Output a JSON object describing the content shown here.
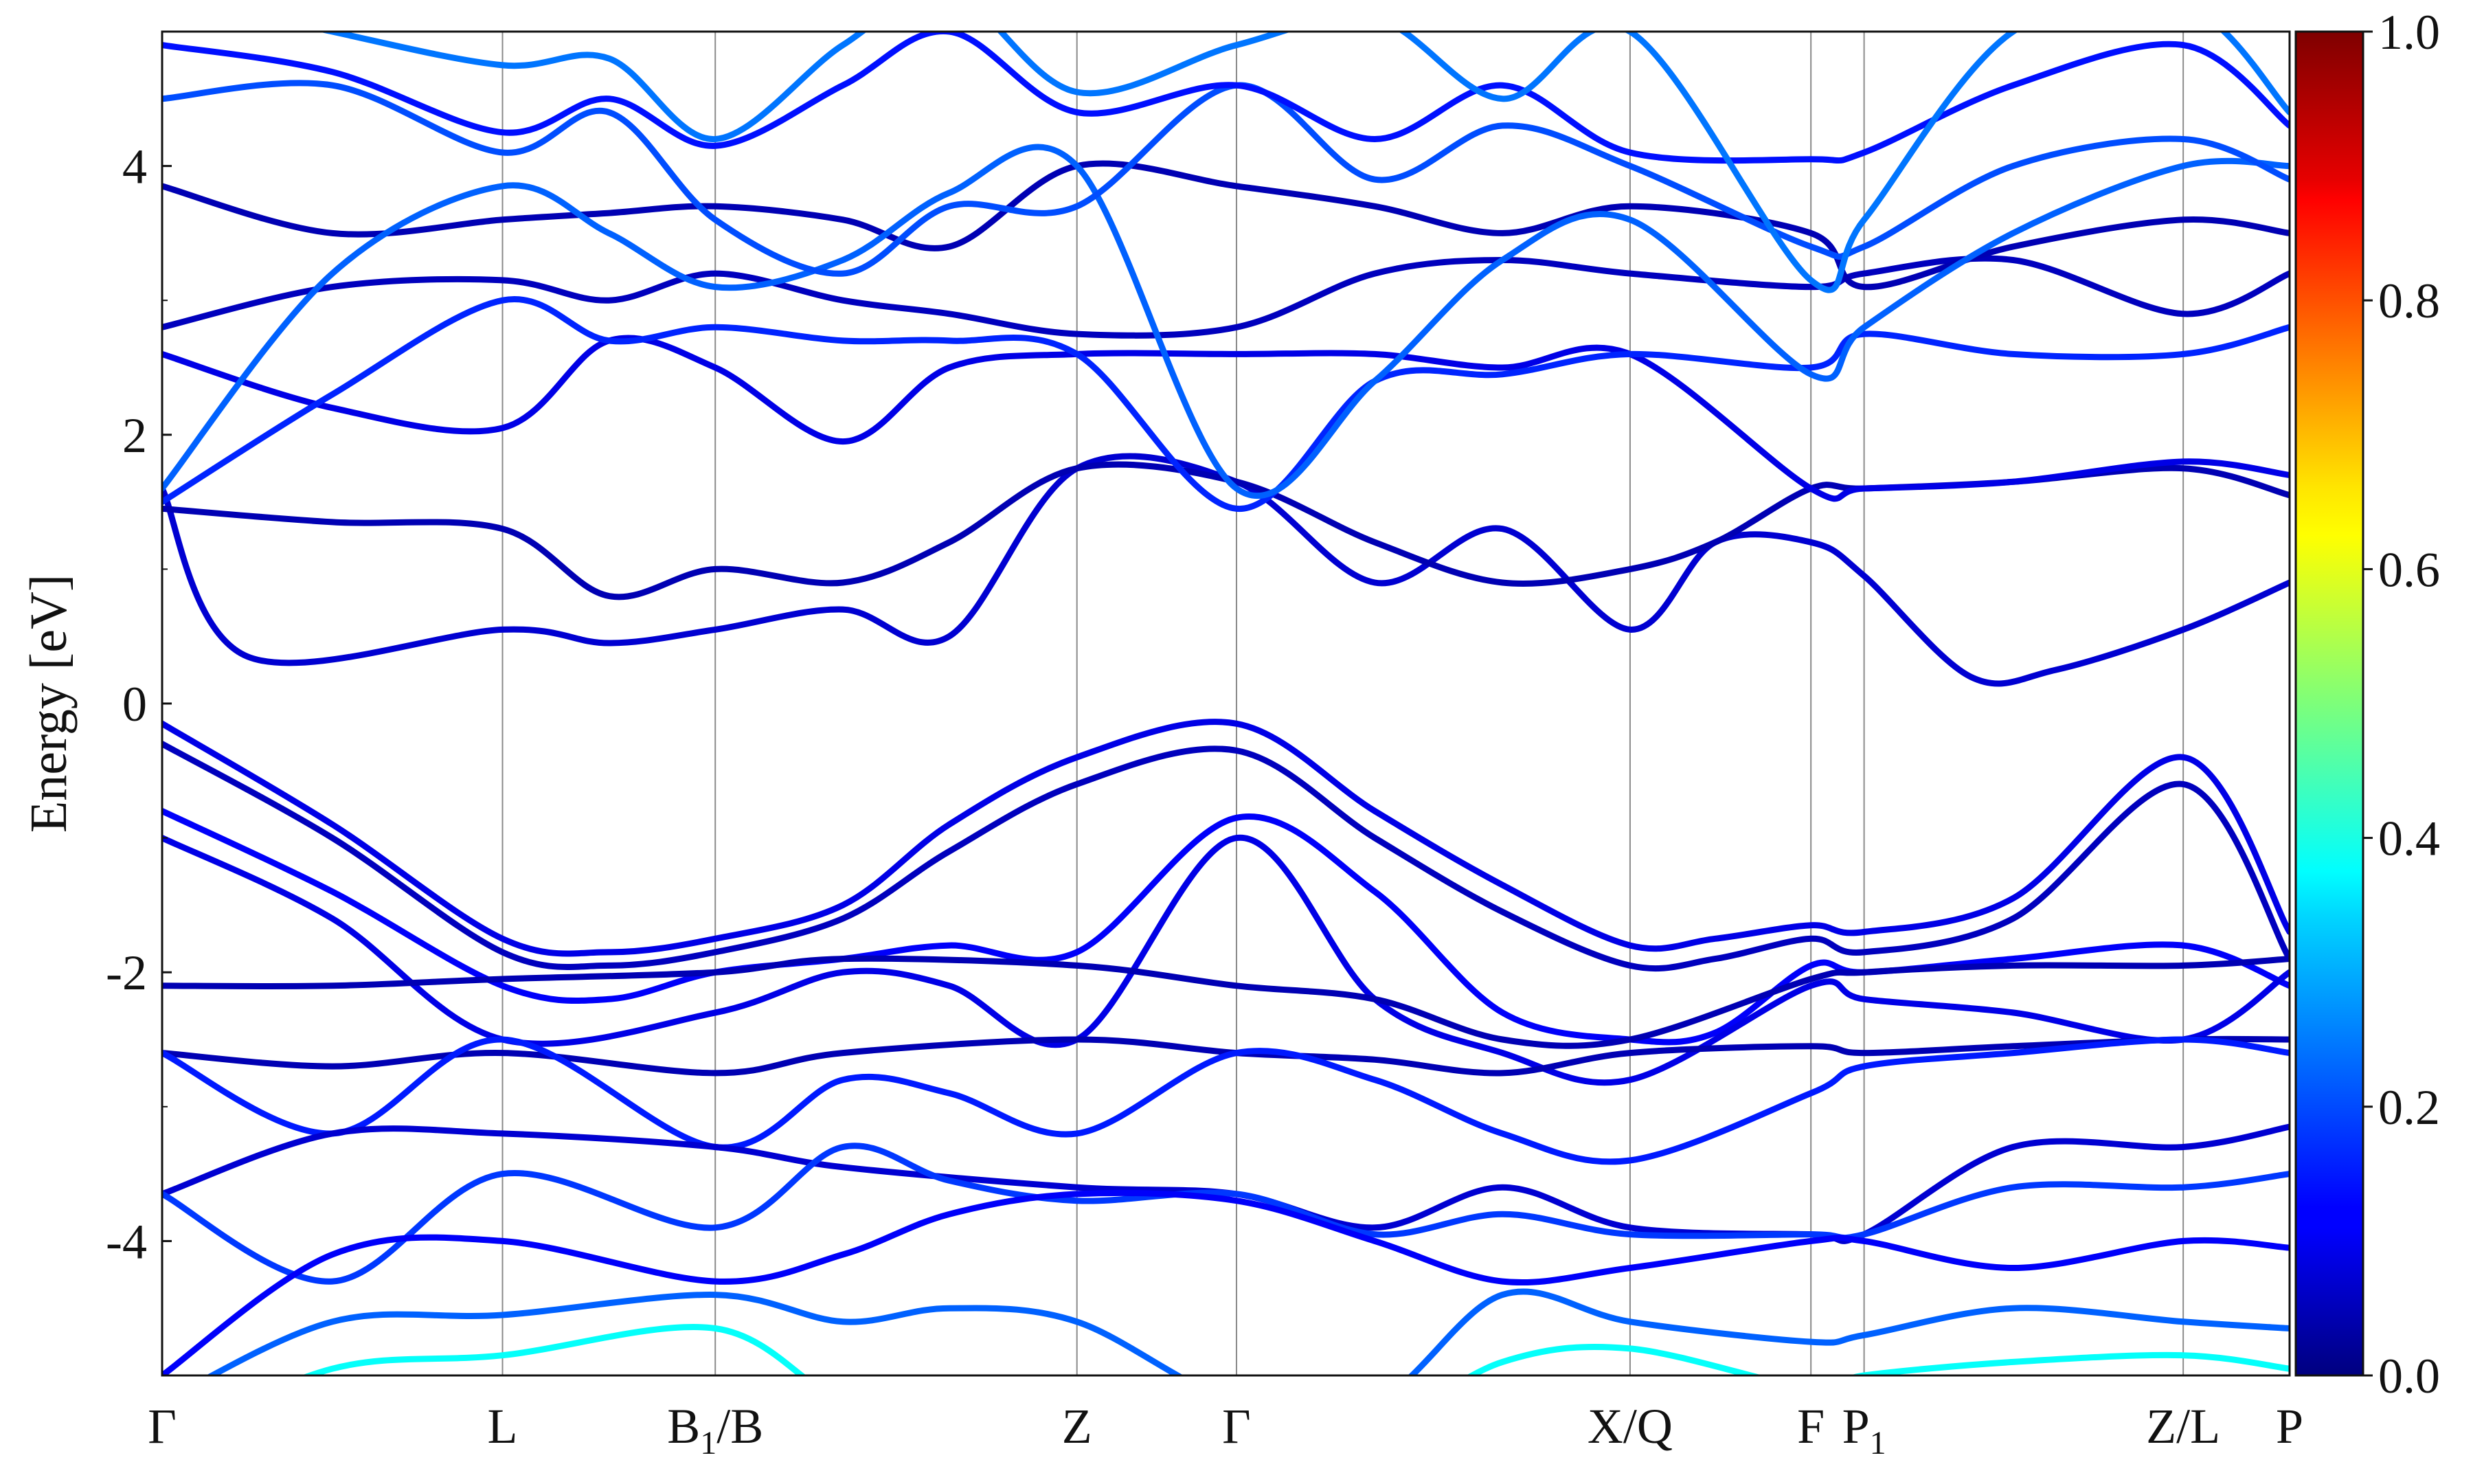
{
  "chart_data": {
    "type": "line",
    "ylabel": "Energy [eV]",
    "ylim": [
      -5,
      5
    ],
    "y_ticks": [
      "4",
      "2",
      "0",
      "-2",
      "-4"
    ],
    "y_tick_values": [
      4,
      2,
      0,
      -2,
      -4
    ],
    "x_range": [
      0,
      10
    ],
    "kpath": [
      {
        "label": "Γ",
        "sub": "",
        "suffix": "",
        "x": 0
      },
      {
        "label": "L",
        "sub": "",
        "suffix": "",
        "x": 1.6
      },
      {
        "label": "B",
        "sub": "1",
        "suffix": "/B",
        "x": 2.6
      },
      {
        "label": "Z",
        "sub": "",
        "suffix": "",
        "x": 4.3
      },
      {
        "label": "Γ",
        "sub": "",
        "suffix": "",
        "x": 5.05
      },
      {
        "label": "X/Q",
        "sub": "",
        "suffix": "",
        "x": 6.9
      },
      {
        "label": "F",
        "sub": "",
        "suffix": "",
        "x": 7.75
      },
      {
        "label": "P",
        "sub": "1",
        "suffix": "",
        "x": 8.0
      },
      {
        "label": "Z/L",
        "sub": "",
        "suffix": "",
        "x": 9.5
      },
      {
        "label": "P",
        "sub": "",
        "suffix": "",
        "x": 10
      }
    ],
    "grid": "vertical lines at high-symmetry points",
    "colorbar": {
      "colormap": "jet",
      "range": [
        0,
        1
      ],
      "ticks": [
        "0.0",
        "0.2",
        "0.4",
        "0.6",
        "0.8",
        "1.0"
      ],
      "tick_values": [
        0,
        0.2,
        0.4,
        0.6,
        0.8,
        1.0
      ]
    },
    "series": [
      {
        "x": [
          0,
          0.8,
          1.6,
          2.1,
          2.6,
          3.2,
          3.7,
          4.3,
          5.05,
          5.7,
          6.3,
          6.9,
          7.3,
          7.75,
          8.0,
          8.7,
          9.5,
          10
        ],
        "y": [
          -0.15,
          -0.9,
          -1.75,
          -1.85,
          -1.75,
          -1.5,
          -0.9,
          -0.4,
          -0.15,
          -0.8,
          -1.35,
          -1.8,
          -1.75,
          -1.65,
          -1.7,
          -1.45,
          -0.4,
          -1.7
        ],
        "w": 0.1
      },
      {
        "x": [
          0,
          0.8,
          1.6,
          2.1,
          2.6,
          3.2,
          3.7,
          4.3,
          5.05,
          5.7,
          6.3,
          6.9,
          7.3,
          7.75,
          8.0,
          8.7,
          9.5,
          10
        ],
        "y": [
          -0.3,
          -1.0,
          -1.85,
          -1.95,
          -1.85,
          -1.6,
          -1.1,
          -0.6,
          -0.35,
          -1.0,
          -1.55,
          -1.95,
          -1.9,
          -1.75,
          -1.85,
          -1.6,
          -0.6,
          -1.9
        ],
        "w": 0.06
      },
      {
        "x": [
          0,
          0.8,
          1.6,
          2.1,
          2.6,
          3.2,
          3.7,
          4.3,
          5.05,
          5.7,
          6.3,
          6.9,
          7.3,
          7.75,
          8.0,
          8.7,
          9.5,
          10
        ],
        "y": [
          -0.8,
          -1.4,
          -2.1,
          -2.2,
          -2.0,
          -1.9,
          -1.8,
          -1.85,
          -0.85,
          -1.4,
          -2.3,
          -2.5,
          -2.45,
          -1.95,
          -2.0,
          -1.9,
          -1.8,
          -2.1
        ],
        "w": 0.12
      },
      {
        "x": [
          0,
          0.8,
          1.6,
          2.6,
          3.2,
          3.7,
          4.3,
          5.05,
          5.7,
          6.3,
          6.9,
          7.75,
          8.0,
          8.7,
          9.5,
          10
        ],
        "y": [
          -1.0,
          -1.6,
          -2.5,
          -2.3,
          -2.0,
          -2.1,
          -2.5,
          -1.0,
          -2.2,
          -2.6,
          -2.8,
          -2.1,
          -2.2,
          -2.3,
          -2.5,
          -2.0
        ],
        "w": 0.1
      },
      {
        "x": [
          0,
          0.8,
          1.6,
          2.6,
          3.2,
          4.3,
          5.05,
          5.7,
          6.3,
          6.9,
          7.75,
          8.0,
          8.7,
          9.5,
          10
        ],
        "y": [
          -2.1,
          -2.1,
          -2.05,
          -2.0,
          -1.9,
          -1.95,
          -2.1,
          -2.2,
          -2.5,
          -2.5,
          -2.05,
          -2.0,
          -1.95,
          -1.95,
          -1.9
        ],
        "w": 0.05
      },
      {
        "x": [
          0,
          0.8,
          1.6,
          2.6,
          3.2,
          4.3,
          5.05,
          5.7,
          6.3,
          6.9,
          7.75,
          8.0,
          8.7,
          9.5,
          10
        ],
        "y": [
          -2.6,
          -2.7,
          -2.6,
          -2.75,
          -2.6,
          -2.5,
          -2.6,
          -2.65,
          -2.75,
          -2.6,
          -2.55,
          -2.6,
          -2.55,
          -2.5,
          -2.5
        ],
        "w": 0.05
      },
      {
        "x": [
          0,
          0.8,
          1.6,
          2.6,
          3.2,
          3.7,
          4.3,
          5.05,
          5.7,
          6.3,
          6.9,
          7.75,
          8.0,
          8.7,
          9.5,
          10
        ],
        "y": [
          -2.6,
          -3.2,
          -2.5,
          -3.3,
          -2.8,
          -2.9,
          -3.2,
          -2.6,
          -2.8,
          -3.2,
          -3.4,
          -2.9,
          -2.7,
          -2.6,
          -2.5,
          -2.6
        ],
        "w": 0.15
      },
      {
        "x": [
          0,
          0.8,
          1.6,
          2.6,
          3.2,
          4.3,
          5.05,
          5.7,
          6.3,
          6.9,
          7.75,
          8.0,
          8.7,
          9.5,
          10
        ],
        "y": [
          -3.65,
          -3.2,
          -3.2,
          -3.3,
          -3.45,
          -3.6,
          -3.65,
          -3.9,
          -3.6,
          -3.9,
          -3.95,
          -3.95,
          -3.3,
          -3.3,
          -3.15
        ],
        "w": 0.08
      },
      {
        "x": [
          0,
          0.8,
          1.6,
          2.6,
          3.2,
          3.7,
          4.3,
          5.05,
          5.7,
          6.3,
          6.9,
          7.75,
          8.0,
          8.7,
          9.5,
          10
        ],
        "y": [
          -3.65,
          -4.3,
          -3.5,
          -3.9,
          -3.3,
          -3.55,
          -3.7,
          -3.65,
          -3.95,
          -3.8,
          -3.95,
          -3.95,
          -3.95,
          -3.6,
          -3.6,
          -3.5
        ],
        "w": 0.18
      },
      {
        "x": [
          0,
          0.8,
          1.6,
          2.6,
          3.2,
          3.7,
          4.3,
          5.05,
          5.7,
          6.3,
          6.9,
          7.75,
          8.0,
          8.7,
          9.5,
          10
        ],
        "y": [
          -5.0,
          -4.1,
          -4.0,
          -4.3,
          -4.1,
          -3.8,
          -3.65,
          -3.7,
          -4.0,
          -4.3,
          -4.2,
          -4.0,
          -4.0,
          -4.2,
          -4.0,
          -4.05
        ],
        "w": 0.12
      },
      {
        "x": [
          0,
          0.8,
          1.6,
          2.6,
          3.2,
          3.7,
          4.3,
          5.05,
          5.7,
          6.3,
          6.9,
          7.75,
          8.0,
          8.7,
          9.5,
          10
        ],
        "y": [
          -5.2,
          -4.6,
          -4.55,
          -4.4,
          -4.6,
          -4.5,
          -4.6,
          -5.2,
          -5.2,
          -4.4,
          -4.6,
          -4.75,
          -4.7,
          -4.5,
          -4.6,
          -4.65
        ],
        "w": 0.22
      },
      {
        "x": [
          0,
          0.8,
          1.6,
          2.6,
          3.2,
          3.7,
          4.3,
          5.05,
          5.7,
          6.3,
          6.9,
          7.75,
          8.0,
          8.7,
          9.5,
          10
        ],
        "y": [
          -5.5,
          -4.95,
          -4.85,
          -4.65,
          -5.2,
          -5.3,
          -5.1,
          -5.5,
          -5.4,
          -4.9,
          -4.8,
          -5.1,
          -5.0,
          -4.9,
          -4.85,
          -4.95
        ],
        "w": 0.38
      },
      {
        "x": [
          0,
          0.4,
          1.6,
          2.1,
          2.6,
          3.2,
          3.7,
          4.3,
          5.05,
          5.7,
          6.3,
          6.9,
          7.3,
          7.75,
          8.0,
          8.5,
          8.9,
          9.5,
          10
        ],
        "y": [
          1.6,
          0.35,
          0.55,
          0.45,
          0.55,
          0.7,
          0.5,
          1.75,
          1.65,
          0.9,
          1.3,
          0.55,
          1.2,
          1.2,
          0.95,
          0.2,
          0.25,
          0.55,
          0.9
        ],
        "w": 0.08
      },
      {
        "x": [
          0,
          0.8,
          1.6,
          2.1,
          2.6,
          3.2,
          3.7,
          4.3,
          5.05,
          5.7,
          6.3,
          6.9,
          7.3,
          7.75,
          8.0,
          8.7,
          9.5,
          10
        ],
        "y": [
          1.45,
          1.35,
          1.3,
          0.8,
          1.0,
          0.9,
          1.2,
          1.75,
          1.65,
          1.2,
          0.9,
          1.0,
          1.2,
          1.6,
          1.6,
          1.65,
          1.75,
          1.55
        ],
        "w": 0.05
      },
      {
        "x": [
          0,
          0.8,
          1.6,
          2.1,
          2.6,
          3.2,
          3.7,
          4.3,
          5.05,
          5.7,
          6.3,
          6.9,
          7.75,
          8.0,
          8.7,
          9.5,
          10
        ],
        "y": [
          2.6,
          2.2,
          2.05,
          2.7,
          2.5,
          1.95,
          2.5,
          2.6,
          2.6,
          2.6,
          2.5,
          2.6,
          1.6,
          1.6,
          1.65,
          1.8,
          1.7
        ],
        "w": 0.1
      },
      {
        "x": [
          0,
          0.8,
          1.6,
          2.1,
          2.6,
          3.2,
          3.7,
          4.3,
          5.05,
          5.7,
          6.3,
          6.9,
          7.75,
          8.0,
          8.7,
          9.5,
          10
        ],
        "y": [
          1.5,
          2.3,
          3.0,
          2.7,
          2.8,
          2.7,
          2.7,
          2.6,
          1.45,
          2.4,
          2.45,
          2.6,
          2.5,
          2.75,
          2.6,
          2.6,
          2.8
        ],
        "w": 0.16
      },
      {
        "x": [
          0,
          0.8,
          1.6,
          2.1,
          2.6,
          3.2,
          3.7,
          4.3,
          5.05,
          5.7,
          6.3,
          6.9,
          7.75,
          8.0,
          8.7,
          9.5,
          10
        ],
        "y": [
          2.8,
          3.1,
          3.15,
          3.0,
          3.2,
          3.0,
          2.9,
          2.75,
          2.8,
          3.2,
          3.3,
          3.2,
          3.1,
          3.2,
          3.3,
          2.9,
          3.2
        ],
        "w": 0.06
      },
      {
        "x": [
          0,
          0.8,
          1.6,
          2.1,
          2.6,
          3.2,
          3.7,
          4.3,
          5.05,
          5.7,
          6.3,
          6.9,
          7.75,
          8.0,
          8.7,
          9.5,
          10
        ],
        "y": [
          3.85,
          3.5,
          3.6,
          3.65,
          3.7,
          3.6,
          3.4,
          4.0,
          3.85,
          3.7,
          3.5,
          3.7,
          3.5,
          3.1,
          3.4,
          3.6,
          3.5
        ],
        "w": 0.05
      },
      {
        "x": [
          0,
          0.8,
          1.6,
          2.1,
          2.6,
          3.2,
          3.7,
          4.3,
          5.05,
          5.7,
          6.3,
          6.9,
          7.75,
          8.0,
          8.7,
          9.5,
          10
        ],
        "y": [
          1.6,
          3.2,
          3.85,
          3.5,
          3.1,
          3.3,
          3.8,
          4.0,
          1.6,
          2.4,
          3.3,
          3.6,
          2.45,
          2.8,
          3.5,
          4.0,
          4.0
        ],
        "w": 0.22
      },
      {
        "x": [
          0,
          0.8,
          1.6,
          2.1,
          2.6,
          3.2,
          3.7,
          4.3,
          5.05,
          5.7,
          6.3,
          6.9,
          7.75,
          8.0,
          8.7,
          9.5,
          10
        ],
        "y": [
          4.5,
          4.6,
          4.1,
          4.4,
          3.6,
          3.2,
          3.7,
          3.7,
          4.6,
          3.9,
          4.3,
          4.0,
          3.4,
          3.4,
          4.0,
          4.2,
          3.9
        ],
        "w": 0.2
      },
      {
        "x": [
          0,
          0.8,
          1.6,
          2.1,
          2.6,
          3.2,
          3.7,
          4.3,
          5.05,
          5.7,
          6.3,
          6.9,
          7.75,
          8.0,
          8.7,
          9.5,
          10
        ],
        "y": [
          4.9,
          4.7,
          4.25,
          4.5,
          4.15,
          4.6,
          5.0,
          4.4,
          4.6,
          4.2,
          4.6,
          4.1,
          4.05,
          4.1,
          4.6,
          4.9,
          4.3
        ],
        "w": 0.14
      },
      {
        "x": [
          0,
          0.8,
          1.6,
          2.1,
          2.6,
          3.2,
          3.7,
          4.3,
          5.05,
          5.7,
          6.3,
          6.9,
          7.75,
          8.0,
          8.7,
          9.5,
          10
        ],
        "y": [
          5.3,
          5.0,
          4.75,
          4.8,
          4.2,
          4.9,
          5.3,
          4.55,
          4.9,
          5.1,
          4.5,
          5.0,
          3.15,
          3.6,
          5.0,
          5.2,
          4.4
        ],
        "w": 0.24
      }
    ]
  }
}
